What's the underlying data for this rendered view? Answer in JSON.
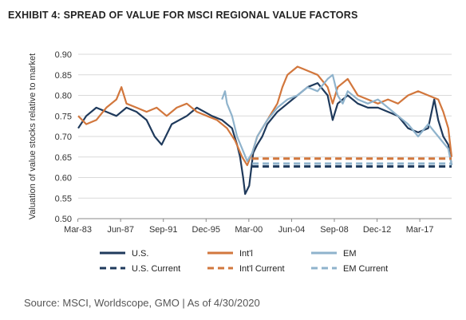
{
  "title": "EXHIBIT 4: SPREAD OF VALUE FOR MSCI REGIONAL VALUE FACTORS",
  "source": "Source: MSCI, Worldscope, GMO | As of 4/30/2020",
  "chart_data": {
    "type": "line",
    "title": "EXHIBIT 4: SPREAD OF VALUE FOR MSCI REGIONAL VALUE FACTORS",
    "xlabel": "",
    "ylabel": "Valuation of value stocks relative to market",
    "x_ticks": [
      "Mar-83",
      "Jun-87",
      "Sep-91",
      "Dec-95",
      "Mar-00",
      "Jun-04",
      "Sep-08",
      "Dec-12",
      "Mar-17"
    ],
    "x_range": [
      "1983-03",
      "2020-04"
    ],
    "ylim": [
      0.5,
      0.9
    ],
    "y_ticks": [
      0.5,
      0.55,
      0.6,
      0.65,
      0.7,
      0.75,
      0.8,
      0.85,
      0.9
    ],
    "y_tick_labels": [
      "0.50",
      "0.55",
      "0.60",
      "0.65",
      "0.70",
      "0.75",
      "0.80",
      "0.85",
      "0.90"
    ],
    "grid": "horizontal",
    "legend_placement": "bottom",
    "series": [
      {
        "name": "U.S.",
        "style": "solid",
        "color": "#1f3a5c",
        "x": [
          1983.2,
          1984.0,
          1985.0,
          1986.0,
          1987.0,
          1988.0,
          1989.0,
          1990.0,
          1990.8,
          1991.5,
          1992.5,
          1994.0,
          1995.0,
          1996.5,
          1997.5,
          1998.5,
          1999.0,
          1999.3,
          1999.6,
          1999.8,
          2000.2,
          2000.6,
          2001.0,
          2001.5,
          2002.0,
          2003.0,
          2004.0,
          2005.0,
          2006.0,
          2007.0,
          2008.0,
          2008.5,
          2009.0,
          2010.0,
          2011.0,
          2012.0,
          2013.0,
          2014.0,
          2015.0,
          2016.0,
          2017.0,
          2018.0,
          2018.6,
          2019.0,
          2019.5,
          2020.0,
          2020.33
        ],
        "values": [
          0.72,
          0.75,
          0.77,
          0.76,
          0.75,
          0.77,
          0.76,
          0.74,
          0.7,
          0.68,
          0.73,
          0.75,
          0.77,
          0.75,
          0.74,
          0.72,
          0.68,
          0.65,
          0.6,
          0.56,
          0.58,
          0.66,
          0.68,
          0.7,
          0.73,
          0.76,
          0.78,
          0.8,
          0.82,
          0.83,
          0.8,
          0.74,
          0.78,
          0.8,
          0.78,
          0.77,
          0.77,
          0.76,
          0.75,
          0.72,
          0.71,
          0.72,
          0.79,
          0.74,
          0.7,
          0.68,
          0.63
        ]
      },
      {
        "name": "Int'l",
        "style": "solid",
        "color": "#d2773d",
        "x": [
          1983.2,
          1984.0,
          1985.0,
          1986.0,
          1987.0,
          1987.5,
          1988.0,
          1989.0,
          1990.0,
          1991.0,
          1992.0,
          1993.0,
          1994.0,
          1995.0,
          1996.0,
          1997.0,
          1998.0,
          1998.8,
          1999.5,
          2000.0,
          2000.5,
          2001.0,
          2002.0,
          2003.0,
          2003.5,
          2004.0,
          2004.5,
          2005.0,
          2006.0,
          2007.0,
          2008.0,
          2008.5,
          2009.0,
          2010.0,
          2011.0,
          2012.0,
          2013.0,
          2014.0,
          2015.0,
          2016.0,
          2017.0,
          2018.0,
          2019.0,
          2019.5,
          2020.0,
          2020.33
        ],
        "values": [
          0.75,
          0.73,
          0.74,
          0.77,
          0.79,
          0.82,
          0.78,
          0.77,
          0.76,
          0.77,
          0.75,
          0.77,
          0.78,
          0.76,
          0.75,
          0.74,
          0.72,
          0.69,
          0.65,
          0.63,
          0.66,
          0.7,
          0.74,
          0.78,
          0.82,
          0.85,
          0.86,
          0.87,
          0.86,
          0.85,
          0.82,
          0.78,
          0.82,
          0.84,
          0.8,
          0.79,
          0.78,
          0.79,
          0.78,
          0.8,
          0.81,
          0.8,
          0.79,
          0.76,
          0.72,
          0.65
        ]
      },
      {
        "name": "EM",
        "style": "solid",
        "color": "#8fb3cc",
        "x": [
          1997.5,
          1997.8,
          1998.0,
          1998.5,
          1999.0,
          1999.5,
          2000.0,
          2000.5,
          2001.0,
          2002.0,
          2003.0,
          2004.0,
          2005.0,
          2006.0,
          2007.0,
          2008.0,
          2008.5,
          2009.0,
          2009.5,
          2010.0,
          2011.0,
          2012.0,
          2013.0,
          2014.0,
          2015.0,
          2016.0,
          2017.0,
          2018.0,
          2019.0,
          2020.0,
          2020.33
        ],
        "values": [
          0.79,
          0.81,
          0.78,
          0.75,
          0.7,
          0.67,
          0.64,
          0.66,
          0.7,
          0.74,
          0.77,
          0.79,
          0.8,
          0.82,
          0.81,
          0.84,
          0.85,
          0.8,
          0.78,
          0.81,
          0.79,
          0.78,
          0.79,
          0.77,
          0.75,
          0.73,
          0.7,
          0.73,
          0.7,
          0.67,
          0.63
        ]
      },
      {
        "name": "U.S. Current",
        "style": "dashed",
        "color": "#1f3a5c",
        "x": [
          2000.5,
          2020.33
        ],
        "values": [
          0.627,
          0.627
        ]
      },
      {
        "name": "Int'l Current",
        "style": "dashed",
        "color": "#d2773d",
        "x": [
          2000.5,
          2020.33
        ],
        "values": [
          0.646,
          0.646
        ]
      },
      {
        "name": "EM Current",
        "style": "dashed",
        "color": "#8fb3cc",
        "x": [
          2000.5,
          2020.33
        ],
        "values": [
          0.634,
          0.634
        ]
      }
    ]
  }
}
